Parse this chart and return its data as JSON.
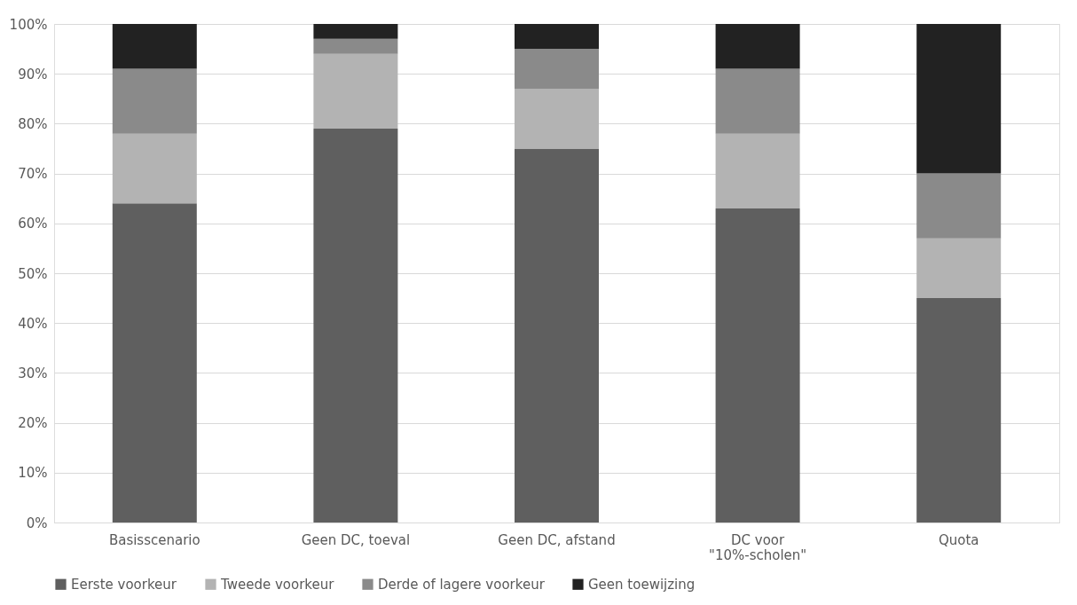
{
  "chart_data": {
    "type": "bar",
    "stacked": true,
    "categories": [
      "Basisscenario",
      "Geen DC, toeval",
      "Geen DC, afstand",
      "DC  voor \"10%-scholen\"",
      "Quota"
    ],
    "series": [
      {
        "name": "Eerste voorkeur",
        "color": "#5f5f5f",
        "values": [
          64,
          79,
          75,
          63,
          45
        ]
      },
      {
        "name": "Tweede voorkeur",
        "color": "#b3b3b3",
        "values": [
          14,
          15,
          12,
          15,
          12
        ]
      },
      {
        "name": "Derde of lagere voorkeur",
        "color": "#8a8a8a",
        "values": [
          13,
          3,
          8,
          13,
          13
        ]
      },
      {
        "name": "Geen toewijzing",
        "color": "#222222",
        "values": [
          9,
          3,
          5,
          9,
          30
        ]
      }
    ],
    "ylim": [
      0,
      100
    ],
    "yticks": [
      {
        "value": 0,
        "label": "0%"
      },
      {
        "value": 10,
        "label": "10%"
      },
      {
        "value": 20,
        "label": "20%"
      },
      {
        "value": 30,
        "label": "30%"
      },
      {
        "value": 40,
        "label": "40%"
      },
      {
        "value": 50,
        "label": "50%"
      },
      {
        "value": 60,
        "label": "60%"
      },
      {
        "value": 70,
        "label": "70%"
      },
      {
        "value": 80,
        "label": "80%"
      },
      {
        "value": 90,
        "label": "90%"
      },
      {
        "value": 100,
        "label": "100%"
      }
    ],
    "grid": "y",
    "legend": "bottom"
  }
}
